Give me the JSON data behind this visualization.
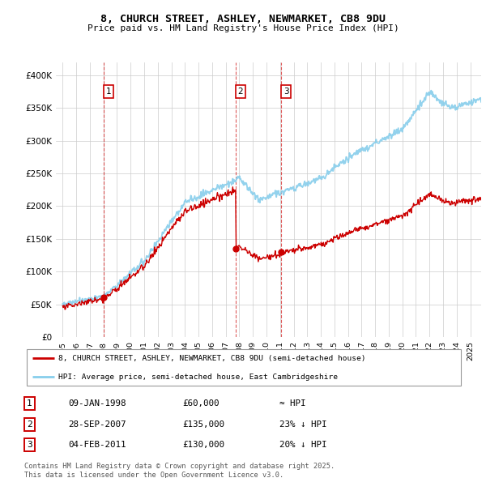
{
  "title_line1": "8, CHURCH STREET, ASHLEY, NEWMARKET, CB8 9DU",
  "title_line2": "Price paid vs. HM Land Registry's House Price Index (HPI)",
  "legend_red": "8, CHURCH STREET, ASHLEY, NEWMARKET, CB8 9DU (semi-detached house)",
  "legend_blue": "HPI: Average price, semi-detached house, East Cambridgeshire",
  "footnote": "Contains HM Land Registry data © Crown copyright and database right 2025.\nThis data is licensed under the Open Government Licence v3.0.",
  "sale_labels": [
    {
      "num": "1",
      "date": "09-JAN-1998",
      "price": "£60,000",
      "hpi": "≈ HPI"
    },
    {
      "num": "2",
      "date": "28-SEP-2007",
      "price": "£135,000",
      "hpi": "23% ↓ HPI"
    },
    {
      "num": "3",
      "date": "04-FEB-2011",
      "price": "£130,000",
      "hpi": "20% ↓ HPI"
    }
  ],
  "sale_points": [
    {
      "year": 1998.03,
      "price": 60000
    },
    {
      "year": 2007.74,
      "price": 135000
    },
    {
      "year": 2011.09,
      "price": 130000
    }
  ],
  "red_color": "#cc0000",
  "blue_color": "#87CEEB",
  "vline_color": "#cc0000",
  "grid_color": "#cccccc",
  "bg_color": "#ffffff",
  "ylim": [
    0,
    420000
  ],
  "xlim": [
    1994.5,
    2025.8
  ]
}
